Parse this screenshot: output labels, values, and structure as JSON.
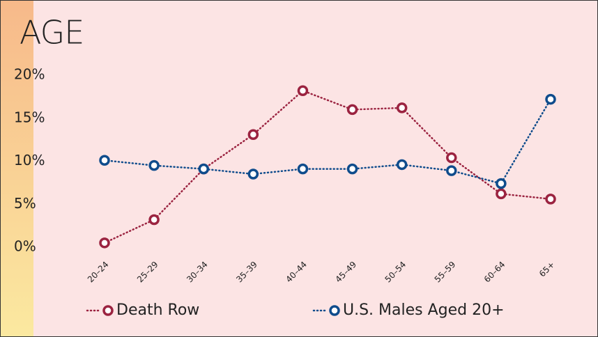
{
  "chart_data": {
    "type": "line",
    "title": "AGE",
    "categories": [
      "20–24",
      "25–29",
      "30–34",
      "35–39",
      "40–44",
      "45–49",
      "50–54",
      "55–59",
      "60–64",
      "65+"
    ],
    "series": [
      {
        "name": "Death Row",
        "color": "#9b2340",
        "values": [
          0.5,
          3.2,
          9.1,
          13.1,
          18.2,
          16.0,
          16.2,
          10.4,
          6.2,
          5.6
        ]
      },
      {
        "name": "U.S. Males Aged 20+",
        "color": "#0f4c8c",
        "values": [
          10.1,
          9.5,
          9.1,
          8.5,
          9.1,
          9.1,
          9.6,
          8.9,
          7.4,
          17.2
        ]
      }
    ],
    "ylim": [
      0,
      20
    ],
    "yticks": [
      {
        "value": 0,
        "label": "0%"
      },
      {
        "value": 5,
        "label": "5%"
      },
      {
        "value": 10,
        "label": "10%"
      },
      {
        "value": 15,
        "label": "15%"
      },
      {
        "value": 20,
        "label": "20%"
      }
    ],
    "grid": false,
    "legend": "bottom"
  }
}
